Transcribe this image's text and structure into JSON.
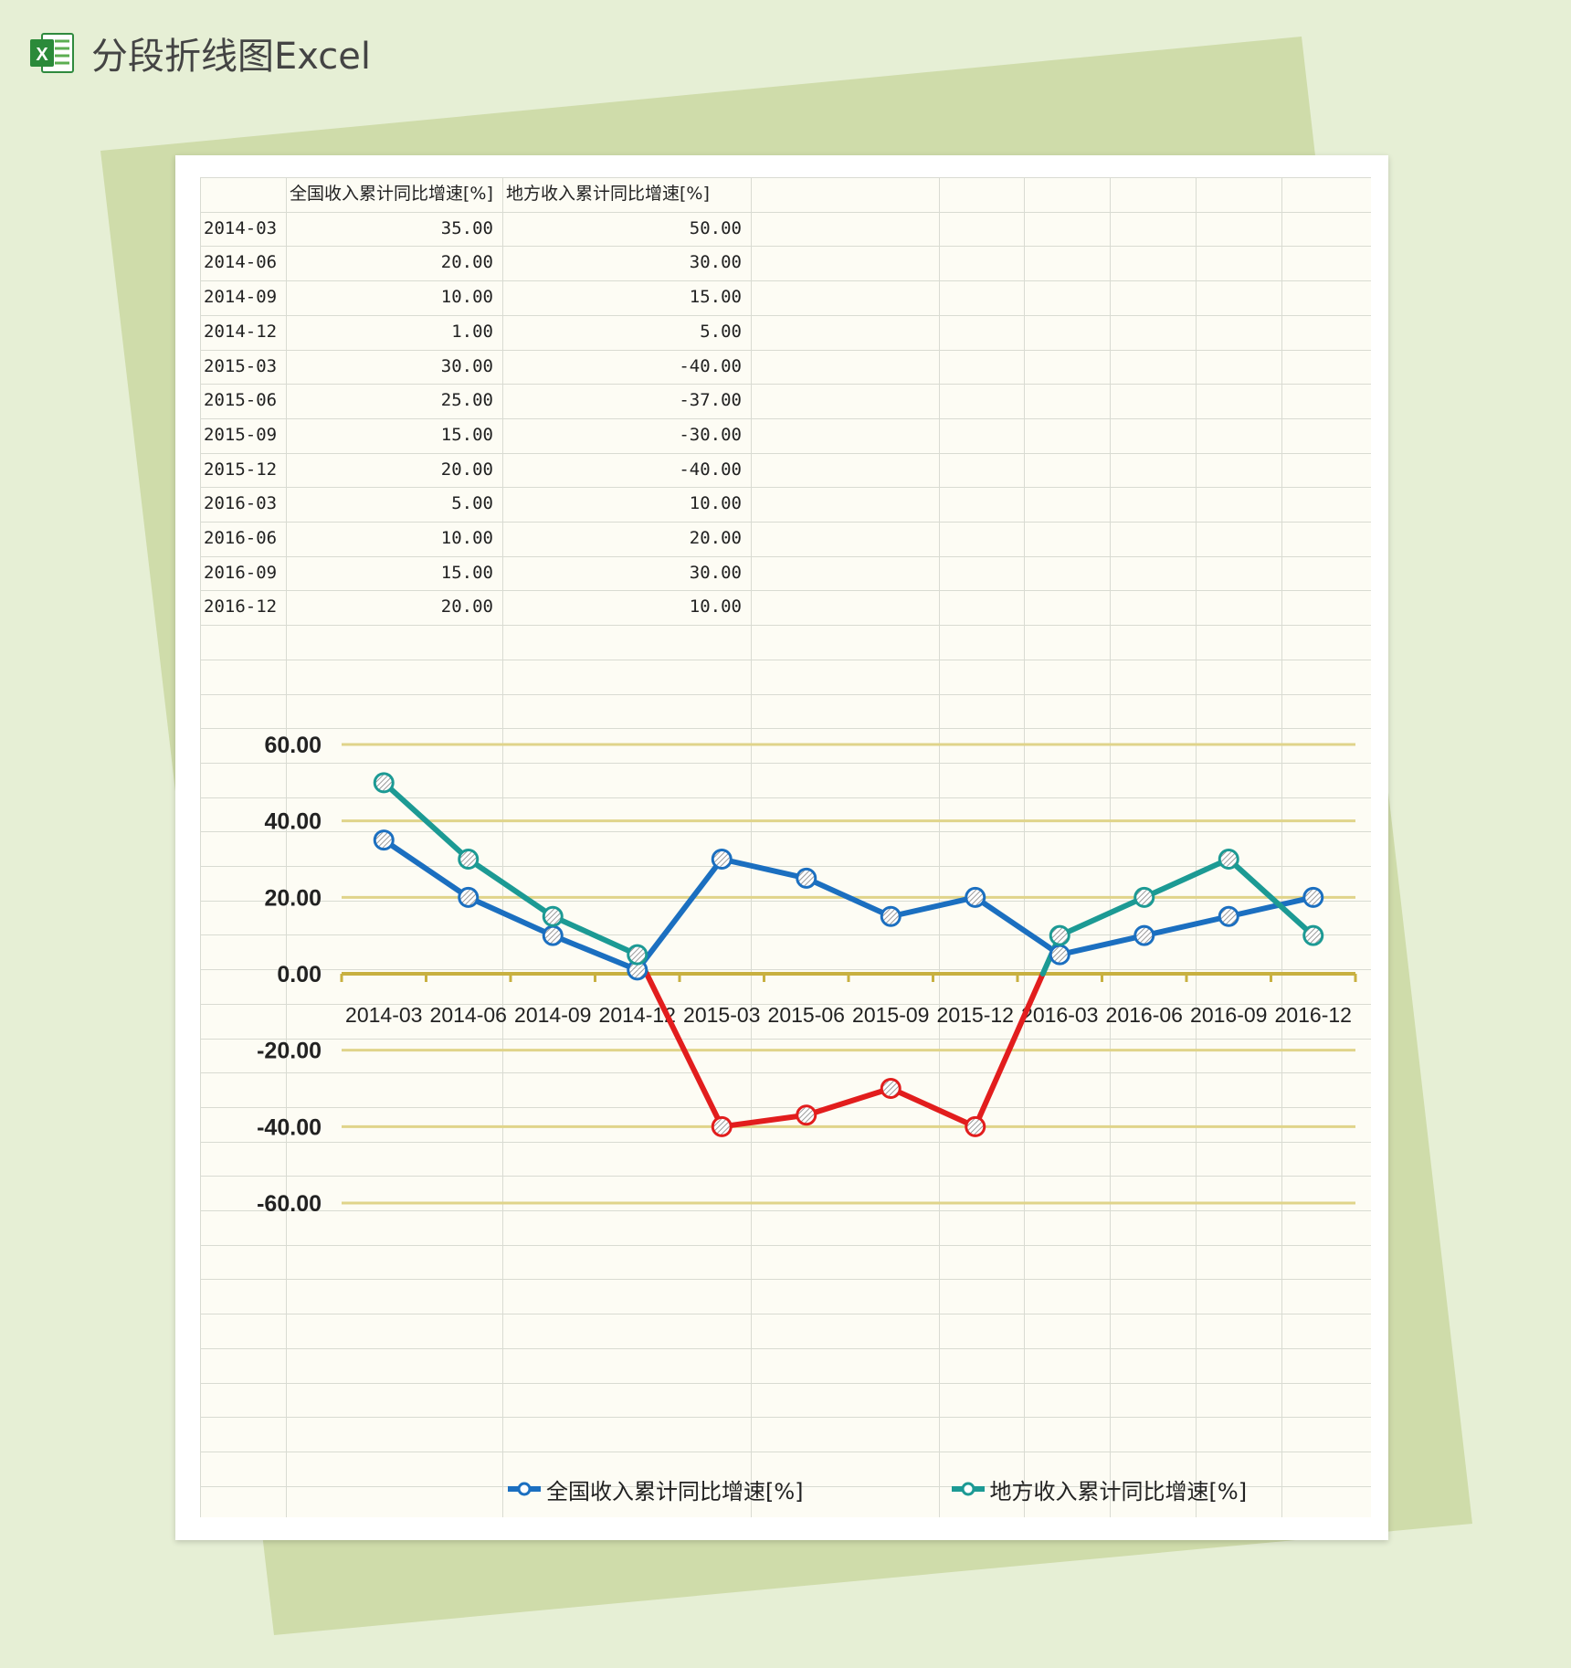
{
  "app": {
    "title": "分段折线图Excel",
    "icon": "excel-icon"
  },
  "table": {
    "headers": [
      "",
      "全国收入累计同比增速[%]",
      "地方收入累计同比增速[%]"
    ],
    "rows": [
      [
        "2014-03",
        "35.00",
        "50.00"
      ],
      [
        "2014-06",
        "20.00",
        "30.00"
      ],
      [
        "2014-09",
        "10.00",
        "15.00"
      ],
      [
        "2014-12",
        "1.00",
        "5.00"
      ],
      [
        "2015-03",
        "30.00",
        "-40.00"
      ],
      [
        "2015-06",
        "25.00",
        "-37.00"
      ],
      [
        "2015-09",
        "15.00",
        "-30.00"
      ],
      [
        "2015-12",
        "20.00",
        "-40.00"
      ],
      [
        "2016-03",
        "5.00",
        "10.00"
      ],
      [
        "2016-06",
        "10.00",
        "20.00"
      ],
      [
        "2016-09",
        "15.00",
        "30.00"
      ],
      [
        "2016-12",
        "20.00",
        "10.00"
      ]
    ]
  },
  "chart_data": {
    "type": "line",
    "categories": [
      "2014-03",
      "2014-06",
      "2014-09",
      "2014-12",
      "2015-03",
      "2015-06",
      "2015-09",
      "2015-12",
      "2016-03",
      "2016-06",
      "2016-09",
      "2016-12"
    ],
    "series": [
      {
        "name": "全国收入累计同比增速[%]",
        "values": [
          35,
          20,
          10,
          1,
          30,
          25,
          15,
          20,
          5,
          10,
          15,
          20
        ],
        "color": "#1b6fc0"
      },
      {
        "name": "地方收入累计同比增速[%]",
        "values": [
          50,
          30,
          15,
          5,
          -40,
          -37,
          -30,
          -40,
          10,
          20,
          30,
          10
        ],
        "color": "#1c9a94",
        "negative_color": "#e21d1d"
      }
    ],
    "yticks": [
      "60.00",
      "40.00",
      "20.00",
      "0.00",
      "-20.00",
      "-40.00",
      "-60.00"
    ],
    "ylim": [
      -60,
      60
    ],
    "gridline_color": "#e0d48a",
    "axis_color": "#c8b040",
    "legend_position": "bottom",
    "title": "",
    "xlabel": "",
    "ylabel": ""
  }
}
